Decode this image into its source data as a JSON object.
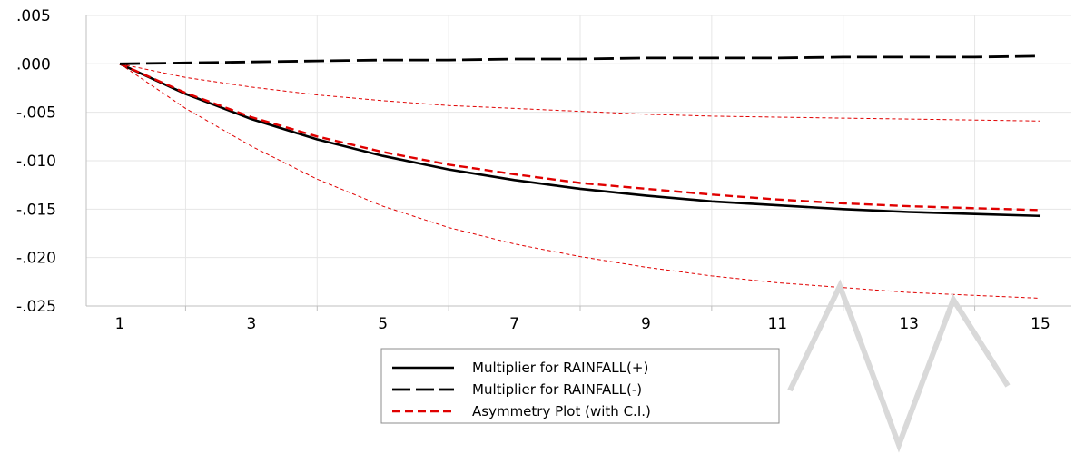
{
  "chart_data": {
    "type": "line",
    "title": "",
    "xlabel": "",
    "ylabel": "",
    "x": [
      1,
      2,
      3,
      4,
      5,
      6,
      7,
      8,
      9,
      10,
      11,
      12,
      13,
      14,
      15
    ],
    "xticks": [
      1,
      3,
      5,
      7,
      9,
      11,
      13,
      15
    ],
    "xlim": [
      0.5,
      15.5
    ],
    "ylim": [
      -0.025,
      0.005
    ],
    "yticks": [
      0.005,
      0.0,
      -0.005,
      -0.01,
      -0.015,
      -0.02,
      -0.025
    ],
    "ytick_labels": [
      ".005",
      ".000",
      "-.005",
      "-.010",
      "-.015",
      "-.020",
      "-.025"
    ],
    "xtick_labels": [
      "1",
      "3",
      "5",
      "7",
      "9",
      "11",
      "13",
      "15"
    ],
    "grid": true,
    "legend_position": "bottom-center",
    "series": [
      {
        "name": "Multiplier for RAINFALL(+)",
        "style": "solid",
        "color": "#000000",
        "values": [
          0.0,
          -0.0031,
          -0.0057,
          -0.0078,
          -0.0095,
          -0.0109,
          -0.012,
          -0.0129,
          -0.0136,
          -0.0142,
          -0.0146,
          -0.015,
          -0.0153,
          -0.0155,
          -0.0157
        ]
      },
      {
        "name": "Multiplier for RAINFALL(-)",
        "style": "longdash",
        "color": "#000000",
        "values": [
          0.0,
          0.0001,
          0.0002,
          0.0003,
          0.0004,
          0.0004,
          0.0005,
          0.0005,
          0.0006,
          0.0006,
          0.0006,
          0.0007,
          0.0007,
          0.0007,
          0.0008
        ]
      },
      {
        "name": "Asymmetry Plot (with C.I.)",
        "style": "dash",
        "color": "#e00000",
        "values": [
          0.0,
          -0.003,
          -0.0055,
          -0.0075,
          -0.0091,
          -0.0104,
          -0.0114,
          -0.0123,
          -0.0129,
          -0.0135,
          -0.014,
          -0.0144,
          -0.0147,
          -0.0149,
          -0.0151
        ]
      },
      {
        "name": "",
        "style": "thindash",
        "color": "#e00000",
        "role": "ci-upper",
        "values": [
          0.0,
          -0.0014,
          -0.0024,
          -0.0032,
          -0.0038,
          -0.0043,
          -0.0046,
          -0.0049,
          -0.0052,
          -0.0054,
          -0.0055,
          -0.0056,
          -0.0057,
          -0.0058,
          -0.0059
        ]
      },
      {
        "name": "",
        "style": "thindash",
        "color": "#e00000",
        "role": "ci-lower",
        "values": [
          0.0,
          -0.0046,
          -0.0085,
          -0.0119,
          -0.0147,
          -0.0169,
          -0.0186,
          -0.0199,
          -0.021,
          -0.0219,
          -0.0226,
          -0.0231,
          -0.0236,
          -0.0239,
          -0.0242
        ]
      }
    ],
    "legend": [
      {
        "label": "Multiplier for RAINFALL(+)",
        "series": 0
      },
      {
        "label": "Multiplier for RAINFALL(-)",
        "series": 1
      },
      {
        "label": "Asymmetry Plot (with C.I.)",
        "series": 2
      }
    ]
  },
  "colors": {
    "axis": "#bfbfbf",
    "grid": "#e6e6e6",
    "series_black": "#000000",
    "series_red": "#e00000",
    "watermark": "#d9d9d9"
  }
}
